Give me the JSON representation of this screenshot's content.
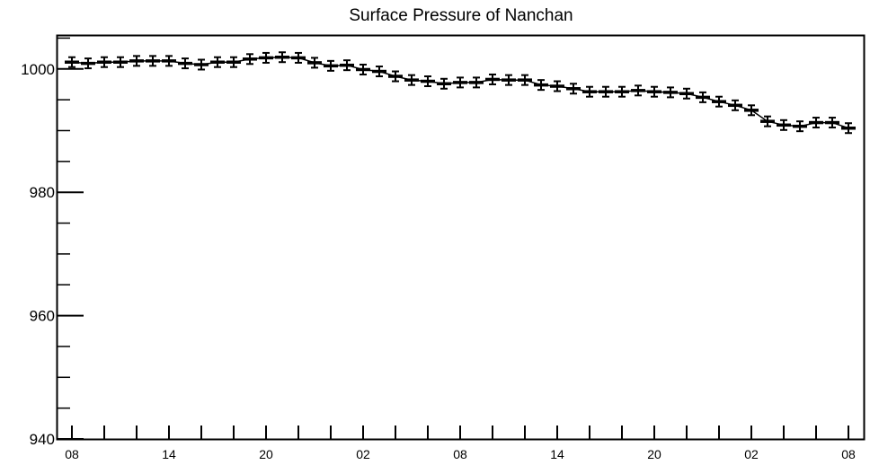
{
  "chart_data": {
    "type": "line",
    "title": "Surface Pressure of Nanchan",
    "xlabel": "",
    "ylabel": "",
    "ylim": [
      940,
      1005.5
    ],
    "y_ticks": [
      940,
      960,
      980,
      1000
    ],
    "y_tick_labels": [
      "940",
      "960",
      "980",
      "1000"
    ],
    "x_tick_labels": [
      "08",
      "14",
      "20",
      "02",
      "08",
      "14",
      "20",
      "02",
      "08"
    ],
    "x_tick_every": 6,
    "grid": false,
    "legend": "none",
    "series": [
      {
        "x": [
          0,
          1,
          2,
          3,
          4,
          5,
          6,
          7,
          8,
          9,
          10,
          11,
          12,
          13,
          14,
          15,
          16,
          17,
          18,
          19,
          20,
          21,
          22,
          23,
          24,
          25,
          26,
          27,
          28,
          29,
          30,
          31,
          32,
          33,
          34,
          35,
          36,
          37,
          38,
          39,
          40,
          41,
          42,
          43,
          44,
          45,
          46,
          47,
          48
        ],
        "values": [
          1001.1,
          1000.9,
          1001.1,
          1001.1,
          1001.3,
          1001.3,
          1001.3,
          1000.9,
          1000.7,
          1001.1,
          1001.1,
          1001.6,
          1001.8,
          1001.9,
          1001.8,
          1001.0,
          1000.5,
          1000.6,
          999.9,
          999.6,
          998.8,
          998.2,
          998.0,
          997.6,
          997.8,
          997.8,
          998.3,
          998.2,
          998.2,
          997.4,
          997.2,
          996.8,
          996.3,
          996.3,
          996.3,
          996.5,
          996.3,
          996.2,
          996.0,
          995.4,
          994.7,
          994.1,
          993.3,
          991.5,
          990.9,
          990.7,
          991.3,
          991.3,
          990.4
        ]
      }
    ],
    "error": 0.8
  }
}
